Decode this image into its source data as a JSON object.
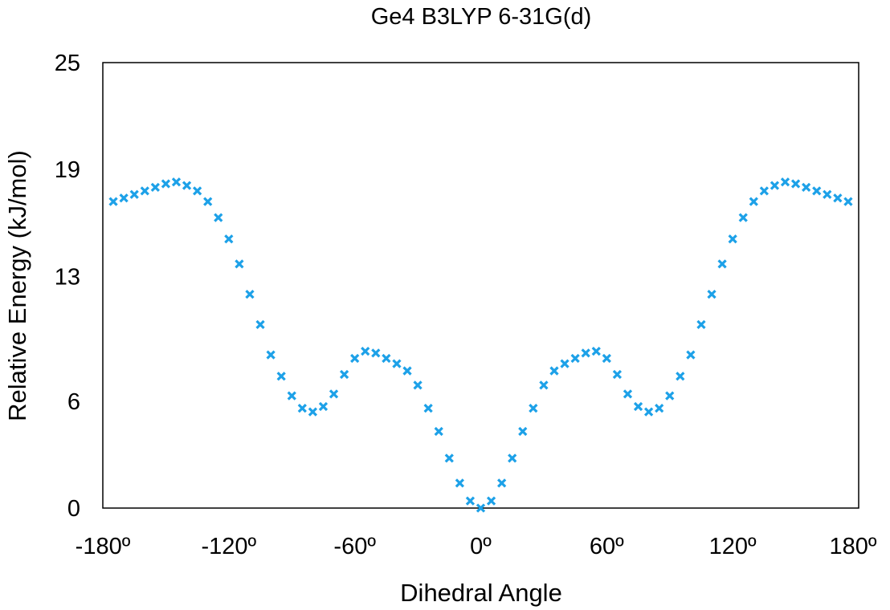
{
  "chart_data": {
    "type": "scatter",
    "title": "Ge4 B3LYP 6-31G(d)",
    "xlabel": "Dihedral Angle",
    "ylabel": "Relative Energy (kJ/mol)",
    "xlim": [
      -180,
      180
    ],
    "ylim": [
      0,
      25
    ],
    "xticks": [
      -180,
      -120,
      -60,
      0,
      60,
      120,
      180
    ],
    "xtick_labels": [
      "-180º",
      "-120º",
      "-60º",
      "0º",
      "60º",
      "120º",
      "180º"
    ],
    "yticks": [
      0,
      6,
      13,
      19,
      25
    ],
    "ytick_labels": [
      "0",
      "6",
      "13",
      "19",
      "25"
    ],
    "grid": false,
    "legend": false,
    "marker": "x",
    "color": "#1da1e8",
    "series": [
      {
        "x": [
          -175,
          -170,
          -165,
          -160,
          -155,
          -150,
          -145,
          -140,
          -135,
          -130,
          -125,
          -120,
          -115,
          -110,
          -105,
          -100,
          -95,
          -90,
          -85,
          -80,
          -75,
          -70,
          -65,
          -60,
          -55,
          -50,
          -45,
          -40,
          -35,
          -30,
          -25,
          -20,
          -15,
          -10,
          -5,
          0,
          5,
          10,
          15,
          20,
          25,
          30,
          35,
          40,
          45,
          50,
          55,
          60,
          65,
          70,
          75,
          80,
          85,
          90,
          95,
          100,
          105,
          110,
          115,
          120,
          125,
          130,
          135,
          140,
          145,
          150,
          155,
          160,
          165,
          170,
          175
        ],
        "y": [
          17.2,
          17.4,
          17.6,
          17.8,
          18.0,
          18.2,
          18.3,
          18.1,
          17.8,
          17.2,
          16.3,
          15.1,
          13.7,
          12.0,
          10.3,
          8.6,
          7.4,
          6.3,
          5.6,
          5.4,
          5.7,
          6.4,
          7.5,
          8.4,
          8.8,
          8.7,
          8.4,
          8.1,
          7.7,
          6.9,
          5.6,
          4.3,
          2.8,
          1.4,
          0.4,
          0.0,
          0.4,
          1.4,
          2.8,
          4.3,
          5.6,
          6.9,
          7.7,
          8.1,
          8.4,
          8.7,
          8.8,
          8.4,
          7.5,
          6.4,
          5.7,
          5.4,
          5.6,
          6.3,
          7.4,
          8.6,
          10.3,
          12.0,
          13.7,
          15.1,
          16.3,
          17.2,
          17.8,
          18.1,
          18.3,
          18.2,
          18.0,
          17.8,
          17.6,
          17.4,
          17.2
        ]
      }
    ]
  }
}
